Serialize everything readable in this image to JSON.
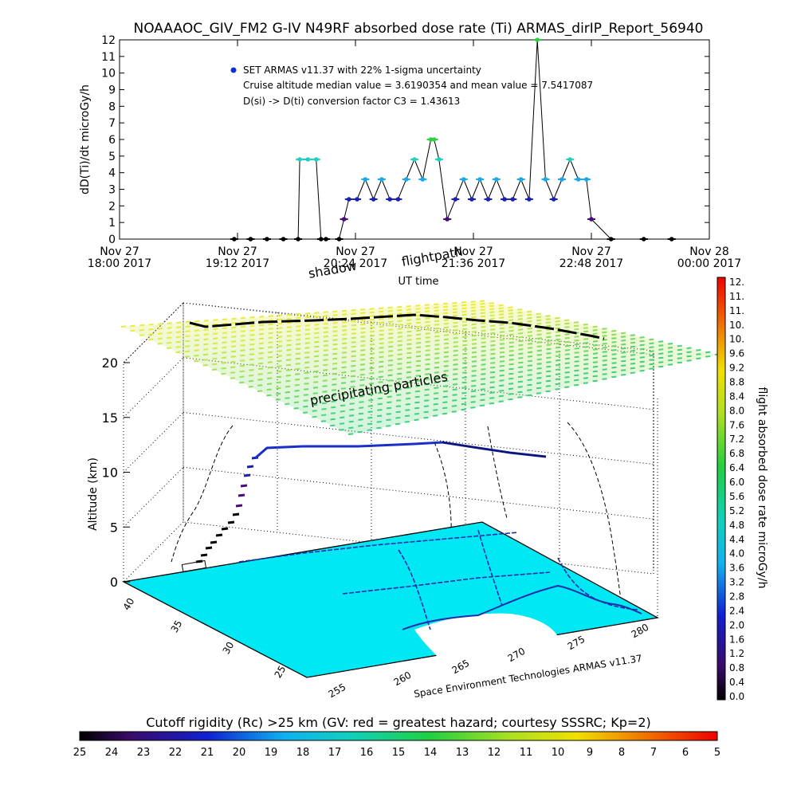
{
  "title": "NOAAAOC_GIV_FM2 G-IV    N49RF   absorbed dose rate (Ti) ARMAS_dirIP_Report_56940",
  "credit": "Space Environment Technologies ARMAS v11.37",
  "labels": {
    "shadow": "shadow",
    "flightpath": "flightpath",
    "precipitating": "precipitating particles"
  },
  "chart_data": [
    {
      "type": "scatter",
      "title": "NOAAAOC_GIV_FM2 G-IV    N49RF   absorbed dose rate (Ti) ARMAS_dirIP_Report_56940",
      "xlabel": "UT time",
      "ylabel": "dD(Ti)/dt microGy/h",
      "ylim": [
        0,
        12
      ],
      "yticks": [
        "0",
        "1",
        "2",
        "3",
        "4",
        "5",
        "6",
        "7",
        "8",
        "9",
        "10",
        "11",
        "12"
      ],
      "xticks": [
        {
          "line1": "Nov 27",
          "line2": "18:00 2017"
        },
        {
          "line1": "Nov 27",
          "line2": "19:12 2017"
        },
        {
          "line1": "Nov 27",
          "line2": "20:24 2017"
        },
        {
          "line1": "Nov 27",
          "line2": "21:36 2017"
        },
        {
          "line1": "Nov 27",
          "line2": "22:48 2017"
        },
        {
          "line1": "Nov 28",
          "line2": "00:00 2017"
        }
      ],
      "annotations": [
        "SET ARMAS v11.37 with 22% 1-sigma uncertainty",
        "Cruise altitude median value = 3.6190354 and mean value = 7.5417087",
        "D(si) -> D(ti) conversion factor C3 = 1.43613"
      ],
      "series": [
        {
          "name": "SET ARMAS v11.37 with 22% 1-sigma uncertainty",
          "x": [
            "19:10",
            "19:20",
            "19:30",
            "19:40",
            "19:49",
            "19:50",
            "19:55",
            "20:00",
            "20:03",
            "20:06",
            "20:14",
            "20:17",
            "20:20",
            "20:25",
            "20:30",
            "20:35",
            "20:40",
            "20:45",
            "20:50",
            "20:55",
            "21:00",
            "21:05",
            "21:10",
            "21:12",
            "21:15",
            "21:20",
            "21:25",
            "21:30",
            "21:35",
            "21:40",
            "21:45",
            "21:50",
            "21:55",
            "22:00",
            "22:05",
            "22:10",
            "22:15",
            "22:20",
            "22:25",
            "22:30",
            "22:35",
            "22:40",
            "22:45",
            "22:48",
            "23:00",
            "23:20",
            "23:37"
          ],
          "y": [
            0,
            0,
            0,
            0,
            0,
            4.8,
            4.8,
            4.8,
            0,
            0,
            0,
            1.2,
            2.4,
            2.4,
            3.6,
            2.4,
            3.6,
            2.4,
            2.4,
            3.6,
            4.8,
            3.6,
            6.0,
            6.0,
            4.8,
            1.2,
            2.4,
            3.6,
            2.4,
            3.6,
            2.4,
            3.6,
            2.4,
            2.4,
            3.6,
            2.4,
            12.5,
            3.6,
            2.4,
            3.6,
            4.8,
            3.6,
            3.6,
            1.2,
            0,
            0,
            0
          ]
        }
      ]
    },
    {
      "type": "heatmap",
      "title": "",
      "zlabel": "Altitude (km)",
      "zticks": [
        "0",
        "5",
        "10",
        "15",
        "20"
      ],
      "lat_ticks": [
        "40",
        "35",
        "30",
        "25"
      ],
      "lon_ticks": [
        "255",
        "260",
        "265",
        "270",
        "275",
        "280"
      ],
      "colorbar_label": "flight absorbed dose rate microGy/h",
      "colorbar_ticks": [
        "12.",
        "11.",
        "11.",
        "10.",
        "10.",
        "9.6",
        "9.2",
        "8.8",
        "8.4",
        "8.0",
        "7.6",
        "7.2",
        "6.8",
        "6.4",
        "6.0",
        "5.6",
        "5.2",
        "4.8",
        "4.4",
        "4.0",
        "3.6",
        "3.2",
        "2.8",
        "2.4",
        "2.0",
        "1.6",
        "1.2",
        "0.8",
        "0.4",
        "0.0"
      ]
    },
    {
      "type": "heatmap",
      "title": "Cutoff rigidity (Rc) >25 km (GV: red = greatest hazard; courtesy SSSRC; Kp=2)",
      "colorbar_ticks": [
        "25",
        "24",
        "23",
        "22",
        "21",
        "20",
        "19",
        "18",
        "17",
        "16",
        "15",
        "14",
        "13",
        "12",
        "11",
        "10",
        "9",
        "8",
        "7",
        "6",
        "5"
      ]
    }
  ]
}
